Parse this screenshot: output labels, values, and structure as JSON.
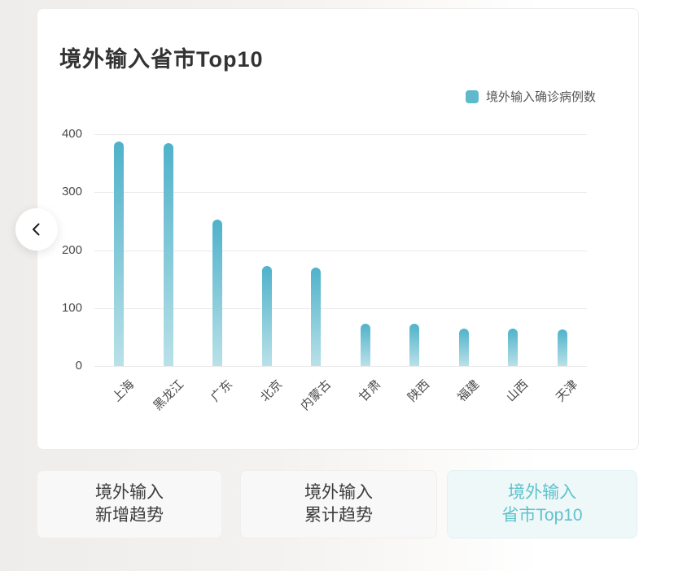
{
  "card": {
    "title": "境外输入省市Top10",
    "legend": {
      "label": "境外输入确诊病例数",
      "color": "#5fb9cd"
    }
  },
  "chart_data": {
    "type": "bar",
    "title": "境外输入省市Top10",
    "series_name": "境外输入确诊病例数",
    "categories": [
      "上海",
      "黑龙江",
      "广东",
      "北京",
      "内蒙古",
      "甘肃",
      "陕西",
      "福建",
      "山西",
      "天津"
    ],
    "values": [
      388,
      384,
      253,
      173,
      170,
      73,
      73,
      64,
      64,
      63
    ],
    "xlabel": "",
    "ylabel": "",
    "ylim": [
      0,
      400
    ],
    "yticks": [
      0,
      100,
      200,
      300,
      400
    ],
    "grid": true,
    "legend_position": "top-right",
    "bar_gradient": [
      "#4fb2ca",
      "#b9e1e8"
    ],
    "x_label_rotation": -45
  },
  "carousel": {
    "prev_icon": "chevron-left"
  },
  "tabs": [
    {
      "id": "imported-new-trend",
      "lines": [
        "境外输入",
        "新增趋势"
      ],
      "active": false
    },
    {
      "id": "imported-cumulative-trend",
      "lines": [
        "境外输入",
        "累计趋势"
      ],
      "active": false
    },
    {
      "id": "imported-province-top10",
      "lines": [
        "境外输入",
        "省市Top10"
      ],
      "active": true
    }
  ]
}
